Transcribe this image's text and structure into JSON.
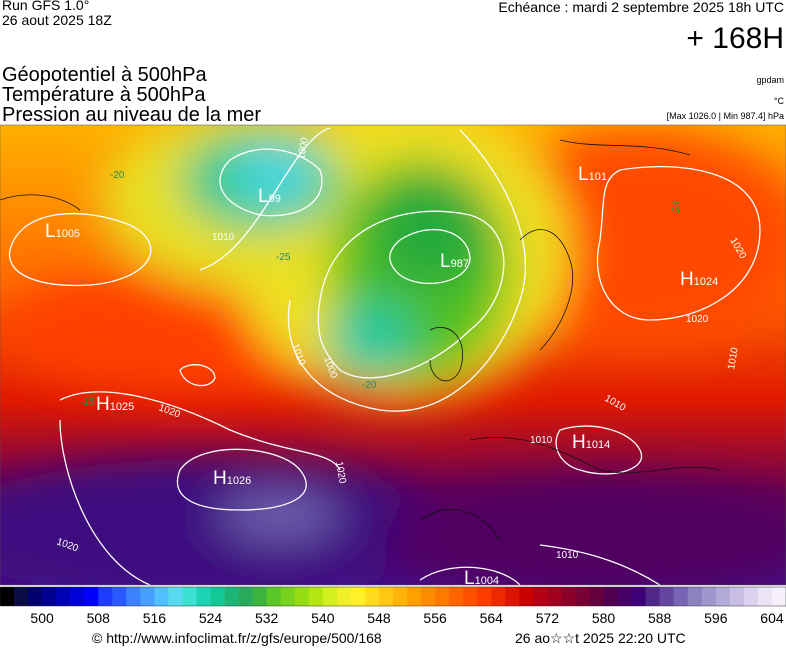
{
  "header": {
    "run": "Run GFS 1.0°",
    "run_date": "26 aout 2025 18Z",
    "forecast": "Echéance : mardi 2 septembre 2025 18h UTC",
    "lead": "+ 168H"
  },
  "fields": [
    "Géopotentiel à 500hPa",
    "Température à 500hPa",
    "Pression au niveau de la mer"
  ],
  "units": [
    "gpdam",
    "°C",
    "[Max 1026.0 | Min 987.4] hPa"
  ],
  "map": {
    "centers": [
      {
        "letter": "L",
        "value": 1005
      },
      {
        "letter": "L",
        "value": 99
      },
      {
        "letter": "L",
        "value": 987
      },
      {
        "letter": "L",
        "value": 101
      },
      {
        "letter": "H",
        "value": 1024
      },
      {
        "letter": "H",
        "value": 1025
      },
      {
        "letter": "H",
        "value": 1026
      },
      {
        "letter": "H",
        "value": 1014
      },
      {
        "letter": "L",
        "value": 1004
      }
    ],
    "isobar_labels": [
      1000,
      1010,
      1010,
      1000,
      1020,
      1020,
      1020,
      1020,
      1010,
      1010,
      1010,
      1010,
      1020
    ],
    "temperature_labels": [
      -20,
      -25,
      -20,
      -20,
      -15
    ]
  },
  "colorbar": {
    "colors": [
      "#000000",
      "#0b0b45",
      "#00006e",
      "#000090",
      "#0000b4",
      "#0000d8",
      "#0000ff",
      "#1e3cff",
      "#2a5aff",
      "#3c82ff",
      "#46a0ff",
      "#50c0ff",
      "#5ad8f0",
      "#3ce0d0",
      "#1ed2b4",
      "#14c896",
      "#1eb478",
      "#28aa5a",
      "#3cb43c",
      "#5ac828",
      "#78d21e",
      "#96dc14",
      "#b4e614",
      "#d2f01e",
      "#f0f028",
      "#fff028",
      "#ffdc1e",
      "#ffc814",
      "#ffb40a",
      "#ffa000",
      "#ff8c00",
      "#ff7800",
      "#ff6400",
      "#ff5000",
      "#ff3c00",
      "#f02800",
      "#dc1400",
      "#c80000",
      "#b40014",
      "#a0001e",
      "#8c0028",
      "#780032",
      "#64003c",
      "#500050",
      "#460064",
      "#3c0078",
      "#50288c",
      "#6446a0",
      "#7864b4",
      "#8c82c0",
      "#a096cc",
      "#b4aad8",
      "#c8bee4",
      "#dcd2f0",
      "#ebe4f5",
      "#f5f0fa"
    ],
    "range": [
      494,
      606
    ],
    "ticks": [
      500,
      508,
      516,
      524,
      532,
      540,
      548,
      556,
      564,
      572,
      580,
      588,
      596,
      604
    ]
  },
  "footer": {
    "source": "© http://www.infoclimat.fr/z/gfs/europe/500/168",
    "generated": "26 ao☆☆t 2025 22:20 UTC"
  }
}
